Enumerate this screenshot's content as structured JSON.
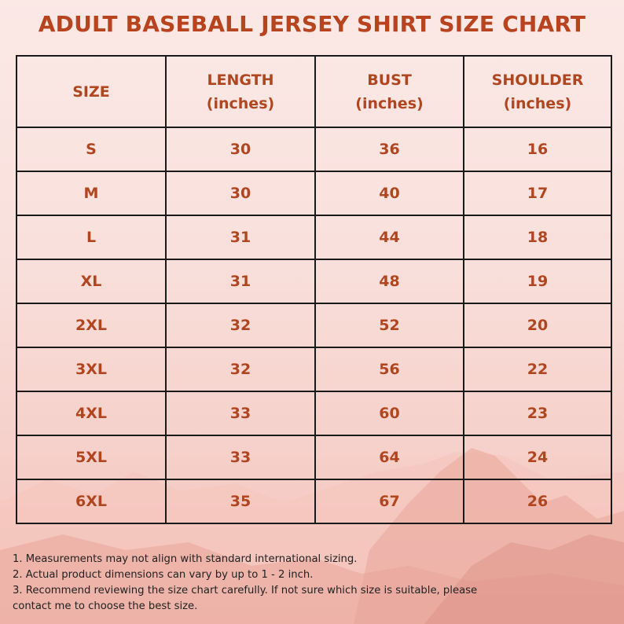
{
  "title": "ADULT BASEBALL JERSEY SHIRT SIZE CHART",
  "headers": [
    {
      "line1": "SIZE",
      "line2": ""
    },
    {
      "line1": "LENGTH",
      "line2": "(inches)"
    },
    {
      "line1": "BUST",
      "line2": "(inches)"
    },
    {
      "line1": "SHOULDER",
      "line2": "(inches)"
    }
  ],
  "rows": [
    [
      "S",
      "30",
      "36",
      "16"
    ],
    [
      "M",
      "30",
      "40",
      "17"
    ],
    [
      "L",
      "31",
      "44",
      "18"
    ],
    [
      "XL",
      "31",
      "48",
      "19"
    ],
    [
      "2XL",
      "32",
      "52",
      "20"
    ],
    [
      "3XL",
      "32",
      "56",
      "22"
    ],
    [
      "4XL",
      "33",
      "60",
      "23"
    ],
    [
      "5XL",
      "33",
      "64",
      "24"
    ],
    [
      "6XL",
      "35",
      "67",
      "26"
    ]
  ],
  "notes": [
    "1. Measurements may not align with standard international sizing.",
    "2. Actual product dimensions can vary by up to 1 - 2 inch.",
    "3. Recommend reviewing the size chart carefully. If not sure which size is suitable, please",
    "contact me to choose the best size."
  ],
  "colors": {
    "title": "#b8431f",
    "cell_text": "#b0461f",
    "border": "#1a1a1a",
    "background": "#f9e0dc"
  }
}
